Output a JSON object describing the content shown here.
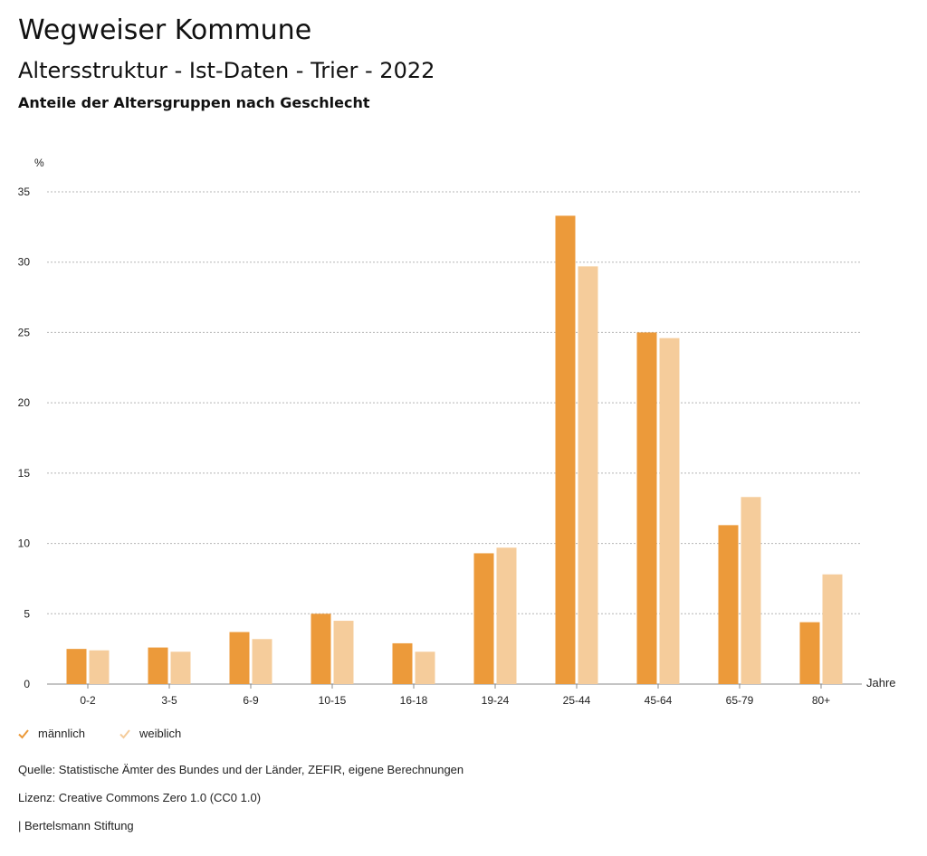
{
  "header": {
    "title": "Wegweiser Kommune",
    "subtitle": "Altersstruktur - Ist-Daten - Trier - 2022",
    "description": "Anteile der Altersgruppen nach Geschlecht"
  },
  "chart_data": {
    "type": "bar",
    "ylabel": "%",
    "xlabel": "Jahre",
    "ylim": [
      0,
      35
    ],
    "yticks": [
      0,
      5,
      10,
      15,
      20,
      25,
      30,
      35
    ],
    "grid": true,
    "legend_position": "bottom-left",
    "categories": [
      "0-2",
      "3-5",
      "6-9",
      "10-15",
      "16-18",
      "19-24",
      "25-44",
      "45-64",
      "65-79",
      "80+"
    ],
    "series": [
      {
        "name": "männlich",
        "color": "#ec9a3a",
        "values": [
          2.5,
          2.6,
          3.7,
          5.0,
          2.9,
          9.3,
          33.3,
          25.0,
          11.3,
          4.4
        ]
      },
      {
        "name": "weiblich",
        "color": "#f5cc9b",
        "values": [
          2.4,
          2.3,
          3.2,
          4.5,
          2.3,
          9.7,
          29.7,
          24.6,
          13.3,
          7.8
        ]
      }
    ]
  },
  "footer": {
    "source": "Quelle: Statistische Ämter des Bundes und der Länder, ZEFIR, eigene Berechnungen",
    "license": "Lizenz: Creative Commons Zero 1.0 (CC0 1.0)",
    "publisher": "| Bertelsmann Stiftung"
  }
}
